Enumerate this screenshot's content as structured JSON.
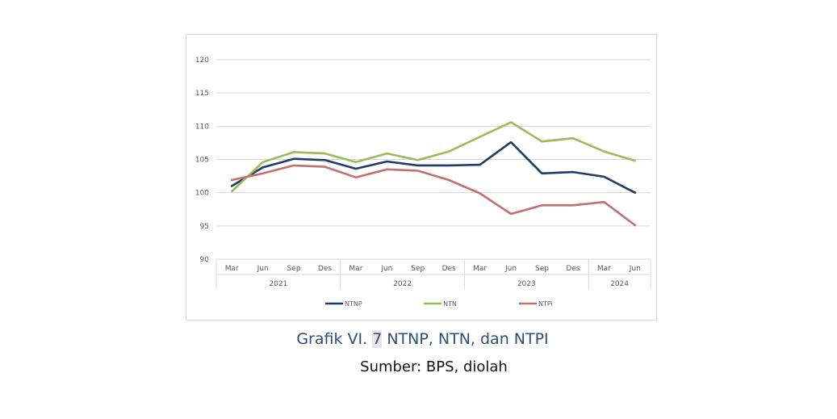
{
  "caption": {
    "prefix": "Grafik VI. ",
    "number": "7",
    "suffix": " NTNP, NTN, dan NTPI"
  },
  "source": "Sumber: BPS, diolah",
  "chart_data": {
    "type": "line",
    "categories": [
      "Mar",
      "Jun",
      "Sep",
      "Des",
      "Mar",
      "Jun",
      "Sep",
      "Des",
      "Mar",
      "Jun",
      "Sep",
      "Des",
      "Mar",
      "Jun"
    ],
    "year_groups": [
      {
        "label": "2021",
        "count": 4
      },
      {
        "label": "2022",
        "count": 4
      },
      {
        "label": "2023",
        "count": 4
      },
      {
        "label": "2024",
        "count": 2
      }
    ],
    "ylim": [
      90,
      120
    ],
    "yticks": [
      90,
      95,
      100,
      105,
      110,
      115,
      120
    ],
    "grid": true,
    "legend_position": "bottom",
    "series": [
      {
        "name": "NTNP",
        "color": "#1f3b66",
        "values": [
          101.0,
          103.8,
          105.1,
          104.9,
          103.6,
          104.7,
          104.1,
          104.1,
          104.2,
          107.6,
          102.9,
          103.1,
          102.4,
          100.0
        ]
      },
      {
        "name": "NTN",
        "color": "#9bbb59",
        "values": [
          100.2,
          104.6,
          106.1,
          105.9,
          104.6,
          105.9,
          104.9,
          106.2,
          108.4,
          110.6,
          107.7,
          108.2,
          106.2,
          104.8
        ]
      },
      {
        "name": "NTPi",
        "color": "#c0706e",
        "values": [
          101.9,
          102.9,
          104.1,
          103.9,
          102.3,
          103.5,
          103.3,
          101.9,
          99.9,
          96.8,
          98.1,
          98.1,
          98.6,
          95.1
        ]
      }
    ]
  }
}
